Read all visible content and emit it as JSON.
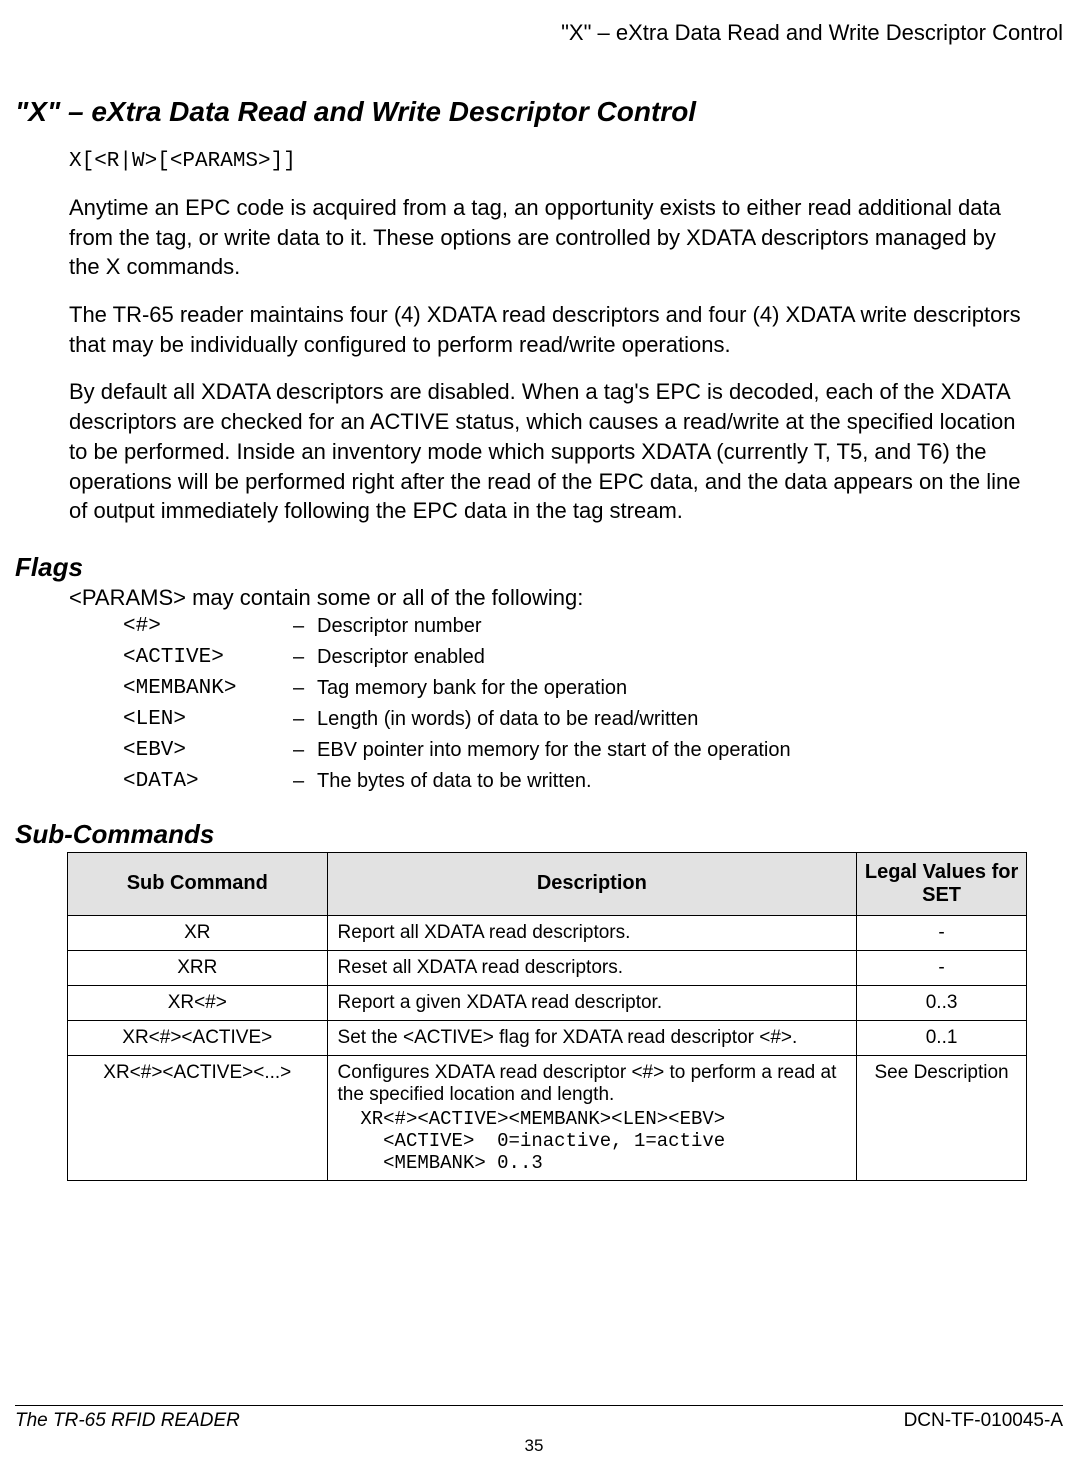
{
  "running_header": "\"X\" – eXtra Data Read and Write Descriptor Control",
  "h1": "\"X\" – eXtra Data Read and Write Descriptor Control",
  "syntax": "X[<R|W>[<PARAMS>]]",
  "paras": [
    "Anytime an EPC code is acquired from a tag, an opportunity exists to either read additional data from the tag, or write data to it. These options are controlled by XDATA descriptors managed by the X commands.",
    "The TR-65 reader maintains four (4) XDATA read descriptors and four (4) XDATA write descriptors that may be individually configured to perform read/write operations.",
    "By default all XDATA descriptors are disabled. When a tag's EPC is decoded, each of the XDATA descriptors are checked for an ACTIVE status, which causes a read/write at the specified location to be performed. Inside an inventory mode which supports XDATA (currently T, T5, and T6) the operations will be performed right after the read of the EPC data, and the data appears on the line of output immediately following the EPC data in the tag stream."
  ],
  "flags_heading": "Flags",
  "flags_intro": "<PARAMS> may contain some or all of the following:",
  "flags": [
    {
      "name": "<#>",
      "desc": "Descriptor number"
    },
    {
      "name": "<ACTIVE>",
      "desc": "Descriptor enabled"
    },
    {
      "name": "<MEMBANK>",
      "desc": "Tag memory bank for the operation"
    },
    {
      "name": "<LEN>",
      "desc": "Length (in words) of data to be read/written"
    },
    {
      "name": "<EBV>",
      "desc": "EBV pointer into memory for the start of the operation"
    },
    {
      "name": "<DATA>",
      "desc": "The bytes of data to be written."
    }
  ],
  "subcmd_heading": "Sub-Commands",
  "table": {
    "headers": [
      "Sub Command",
      "Description",
      "Legal Values for SET"
    ],
    "rows": [
      {
        "sub": "XR",
        "desc_plain": "Report all XDATA read descriptors.",
        "legal": "-"
      },
      {
        "sub": "XRR",
        "desc_plain": "Reset all XDATA read descriptors.",
        "legal": "-"
      },
      {
        "sub": "XR<#>",
        "desc_plain": "Report a given XDATA read descriptor.",
        "legal": "0..3"
      },
      {
        "sub": "XR<#><ACTIVE>",
        "desc_plain": "Set the <ACTIVE> flag for XDATA read descriptor <#>.",
        "legal": "0..1"
      },
      {
        "sub": "XR<#><ACTIVE><...>",
        "desc_plain": "Configures XDATA read descriptor <#> to perform a read at the specified location and length.",
        "mono": "  XR<#><ACTIVE><MEMBANK><LEN><EBV>\n    <ACTIVE>  0=inactive, 1=active\n    <MEMBANK> 0..3",
        "legal": "See Description"
      }
    ]
  },
  "footer": {
    "left": "The TR-65 RFID READER",
    "right": "DCN-TF-010045-A",
    "page": "35"
  }
}
